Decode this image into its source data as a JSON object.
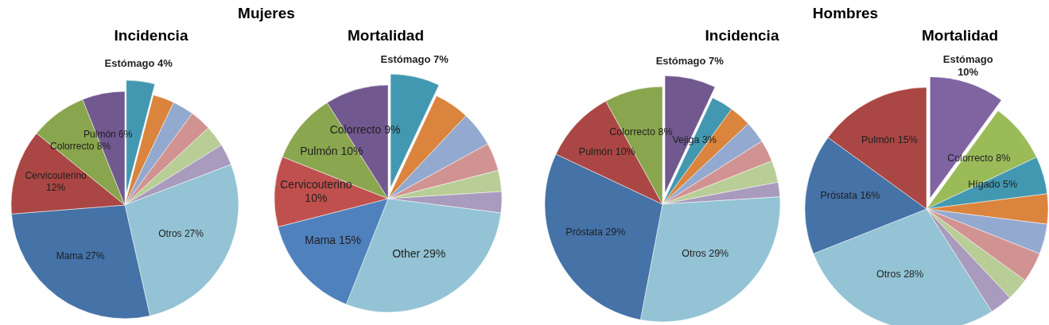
{
  "chart_data": [
    {
      "type": "pie",
      "title": "Incidencia",
      "annotations": [
        "Mujeres"
      ],
      "categories": [
        "Estómago",
        null,
        null,
        null,
        null,
        null,
        "Otros",
        "Mama",
        "Cervicouterino",
        "Colorrecto",
        "Pulmón"
      ],
      "values": [
        4,
        3,
        3,
        3,
        3,
        3,
        27,
        27,
        12,
        8,
        6
      ],
      "value_labels": [
        "4%",
        null,
        null,
        null,
        null,
        null,
        "27%",
        "27%",
        "12%",
        "8%",
        "6%"
      ],
      "colors": [
        "#4298b0",
        "#db843d",
        "#93a9cf",
        "#d19392",
        "#b9cd96",
        "#a99bbd",
        "#93c3d4",
        "#4572a7",
        "#aa4643",
        "#89a54e",
        "#71588f"
      ]
    },
    {
      "type": "pie",
      "title": "Mortalidad",
      "categories": [
        "Estómago",
        null,
        null,
        null,
        null,
        null,
        "Other",
        "Mama",
        "Cervicouterino",
        "Pulmón",
        "Colorrecto"
      ],
      "values": [
        7,
        5,
        5,
        4,
        3,
        3,
        29,
        15,
        10,
        10,
        9
      ],
      "value_labels": [
        "7%",
        null,
        null,
        null,
        null,
        null,
        "29%",
        "15%",
        "10%",
        "10%",
        "9%"
      ],
      "colors": [
        "#4298b0",
        "#db843d",
        "#93a9cf",
        "#d19392",
        "#b9cd96",
        "#a99bbd",
        "#93c3d4",
        "#4f81bd",
        "#c0504d",
        "#8aa64f",
        "#71588f"
      ]
    },
    {
      "type": "pie",
      "title": "Incidencia",
      "annotations": [
        "Hombres"
      ],
      "categories": [
        "Estómago",
        "Vejiga",
        null,
        null,
        null,
        null,
        null,
        "Otros",
        "Próstata",
        "Pulmón",
        "Colorrecto"
      ],
      "values": [
        7,
        3,
        3,
        3,
        3,
        3,
        2,
        29,
        29,
        10,
        8
      ],
      "value_labels": [
        "7%",
        "3%",
        null,
        null,
        null,
        null,
        null,
        "29%",
        "29%",
        "10%",
        "8%"
      ],
      "colors": [
        "#71588f",
        "#4298b0",
        "#db843d",
        "#93a9cf",
        "#d19392",
        "#b9cd96",
        "#a99bbd",
        "#93c3d4",
        "#4572a7",
        "#aa4643",
        "#89a54e"
      ]
    },
    {
      "type": "pie",
      "title": "Mortalidad",
      "categories": [
        "Estómago",
        "Colorrecto",
        "Hígado",
        null,
        null,
        null,
        null,
        null,
        "Otros",
        "Próstata",
        "Pulmón"
      ],
      "values": [
        10,
        8,
        5,
        4,
        4,
        4,
        3,
        3,
        28,
        16,
        15
      ],
      "value_labels": [
        "10%",
        "8%",
        "5%",
        null,
        null,
        null,
        null,
        null,
        "28%",
        "16%",
        "15%"
      ],
      "colors": [
        "#8064a2",
        "#9bbb59",
        "#4298b0",
        "#db843d",
        "#93a9cf",
        "#d19392",
        "#b9cd96",
        "#a99bbd",
        "#93c3d4",
        "#4572a7",
        "#aa4643"
      ]
    }
  ]
}
